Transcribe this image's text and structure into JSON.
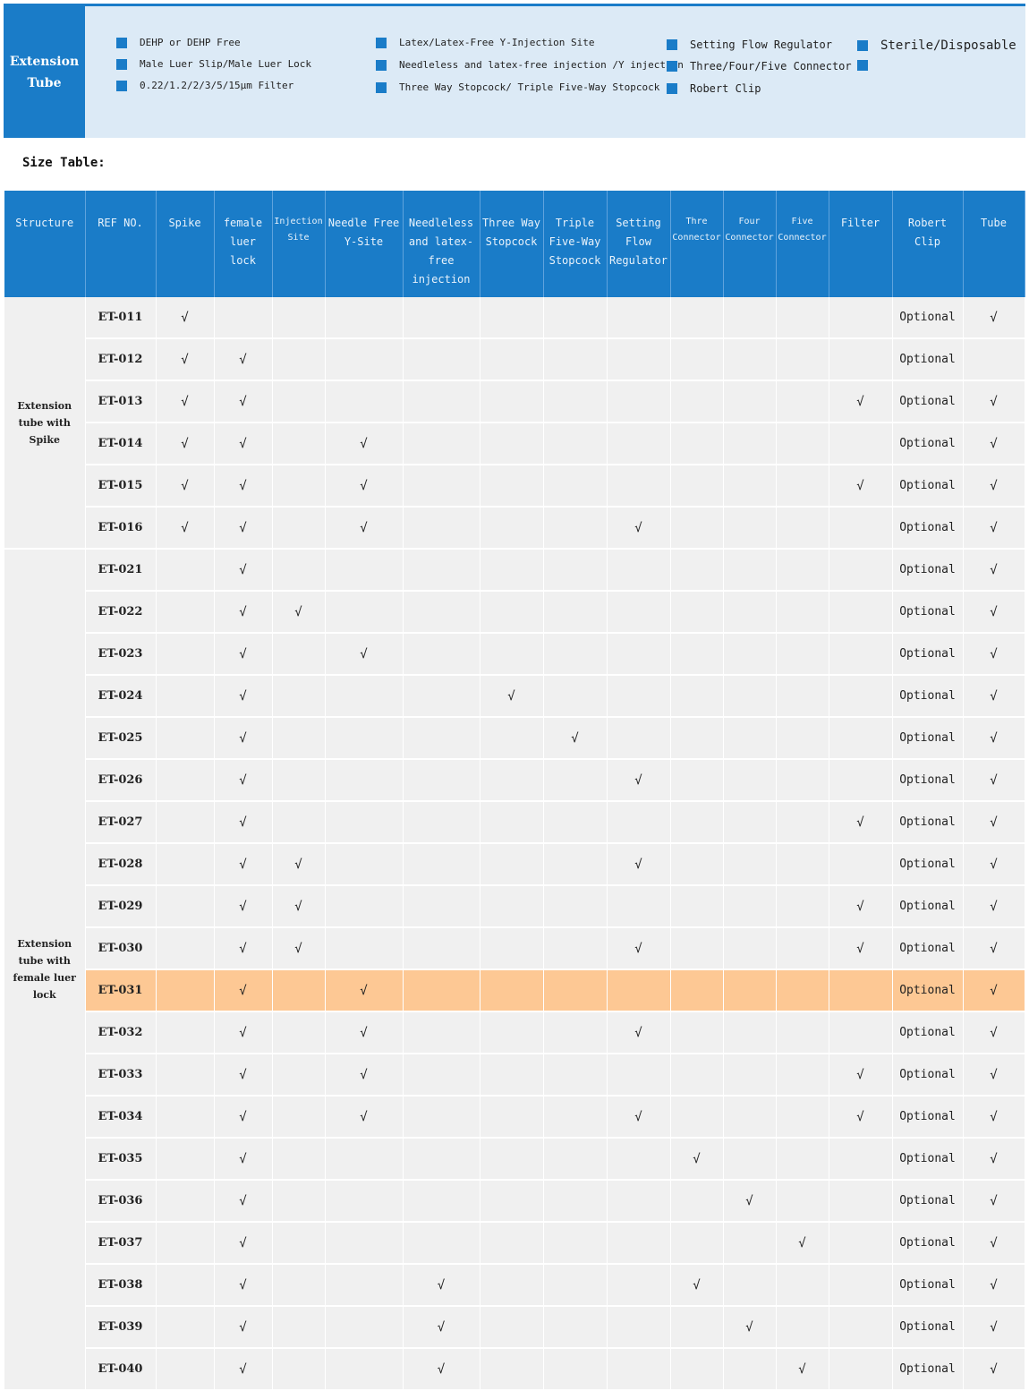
{
  "banner": {
    "title_line1": "Extension",
    "title_line2": "Tube",
    "features": [
      "DEHP or DEHP Free",
      "Male Luer Slip/Male Luer Lock",
      "0.22/1.2/2/3/5/15μm Filter",
      "Latex/Latex-Free Y-Injection Site",
      "Needleless and latex-free  injection /Y injection",
      "Three Way  Stopcock/ Triple Five-Way Stopcock",
      "Setting Flow Regulator",
      "Three/Four/Five Connector",
      "Robert Clip",
      "Sterile/Disposable",
      ""
    ],
    "accent": "#1a7cc8",
    "background": "#dceaf6"
  },
  "size_table_label": "Size Table:",
  "table": {
    "headers": [
      "Structure",
      "REF NO.",
      "Spike",
      "female luer lock",
      "Injection Site",
      "Needle Free Y-Site",
      "Needleless and latex-free injection",
      "Three Way Stopcock",
      "Triple Five-Way Stopcock",
      "Setting Flow Regulator",
      "Thre Connector",
      "Four Connector",
      "Five Connector",
      "Filter",
      "Robert Clip",
      "Tube"
    ],
    "groups": [
      {
        "label": "Extension tube with Spike",
        "rows": 6
      },
      {
        "label": "Extension tube with female luer lock",
        "rows": 20
      }
    ],
    "highlight_row": "ET-031",
    "highlight_color": "#fdc894",
    "rows": [
      [
        "ET-011",
        "√",
        "",
        "",
        "",
        "",
        "",
        "",
        "",
        "",
        "",
        "",
        "",
        "Optional",
        "√"
      ],
      [
        "ET-012",
        "√",
        "√",
        "",
        "",
        "",
        "",
        "",
        "",
        "",
        "",
        "",
        "",
        "Optional",
        ""
      ],
      [
        "ET-013",
        "√",
        "√",
        "",
        "",
        "",
        "",
        "",
        "",
        "",
        "",
        "",
        "√",
        "Optional",
        "√"
      ],
      [
        "ET-014",
        "√",
        "√",
        "",
        "√",
        "",
        "",
        "",
        "",
        "",
        "",
        "",
        "",
        "Optional",
        "√"
      ],
      [
        "ET-015",
        "√",
        "√",
        "",
        "√",
        "",
        "",
        "",
        "",
        "",
        "",
        "",
        "√",
        "Optional",
        "√"
      ],
      [
        "ET-016",
        "√",
        "√",
        "",
        "√",
        "",
        "",
        "",
        "√",
        "",
        "",
        "",
        "",
        "Optional",
        "√"
      ],
      [
        "ET-021",
        "",
        "√",
        "",
        "",
        "",
        "",
        "",
        "",
        "",
        "",
        "",
        "",
        "Optional",
        "√"
      ],
      [
        "ET-022",
        "",
        "√",
        "√",
        "",
        "",
        "",
        "",
        "",
        "",
        "",
        "",
        "",
        "Optional",
        "√"
      ],
      [
        "ET-023",
        "",
        "√",
        "",
        "√",
        "",
        "",
        "",
        "",
        "",
        "",
        "",
        "",
        "Optional",
        "√"
      ],
      [
        "ET-024",
        "",
        "√",
        "",
        "",
        "",
        "√",
        "",
        "",
        "",
        "",
        "",
        "",
        "Optional",
        "√"
      ],
      [
        "ET-025",
        "",
        "√",
        "",
        "",
        "",
        "",
        "√",
        "",
        "",
        "",
        "",
        "",
        "Optional",
        "√"
      ],
      [
        "ET-026",
        "",
        "√",
        "",
        "",
        "",
        "",
        "",
        "√",
        "",
        "",
        "",
        "",
        "Optional",
        "√"
      ],
      [
        "ET-027",
        "",
        "√",
        "",
        "",
        "",
        "",
        "",
        "",
        "",
        "",
        "",
        "√",
        "Optional",
        "√"
      ],
      [
        "ET-028",
        "",
        "√",
        "√",
        "",
        "",
        "",
        "",
        "√",
        "",
        "",
        "",
        "",
        "Optional",
        "√"
      ],
      [
        "ET-029",
        "",
        "√",
        "√",
        "",
        "",
        "",
        "",
        "",
        "",
        "",
        "",
        "√",
        "Optional",
        "√"
      ],
      [
        "ET-030",
        "",
        "√",
        "√",
        "",
        "",
        "",
        "",
        "√",
        "",
        "",
        "",
        "√",
        "Optional",
        "√"
      ],
      [
        "ET-031",
        "",
        "√",
        "",
        "√",
        "",
        "",
        "",
        "",
        "",
        "",
        "",
        "",
        "Optional",
        "√"
      ],
      [
        "ET-032",
        "",
        "√",
        "",
        "√",
        "",
        "",
        "",
        "√",
        "",
        "",
        "",
        "",
        "Optional",
        "√"
      ],
      [
        "ET-033",
        "",
        "√",
        "",
        "√",
        "",
        "",
        "",
        "",
        "",
        "",
        "",
        "√",
        "Optional",
        "√"
      ],
      [
        "ET-034",
        "",
        "√",
        "",
        "√",
        "",
        "",
        "",
        "√",
        "",
        "",
        "",
        "√",
        "Optional",
        "√"
      ],
      [
        "ET-035",
        "",
        "√",
        "",
        "",
        "",
        "",
        "",
        "",
        "√",
        "",
        "",
        "",
        "Optional",
        "√"
      ],
      [
        "ET-036",
        "",
        "√",
        "",
        "",
        "",
        "",
        "",
        "",
        "",
        "√",
        "",
        "",
        "Optional",
        "√"
      ],
      [
        "ET-037",
        "",
        "√",
        "",
        "",
        "",
        "",
        "",
        "",
        "",
        "",
        "√",
        "",
        "Optional",
        "√"
      ],
      [
        "ET-038",
        "",
        "√",
        "",
        "",
        "√",
        "",
        "",
        "",
        "√",
        "",
        "",
        "",
        "Optional",
        "√"
      ],
      [
        "ET-039",
        "",
        "√",
        "",
        "",
        "√",
        "",
        "",
        "",
        "",
        "√",
        "",
        "",
        "Optional",
        "√"
      ],
      [
        "ET-040",
        "",
        "√",
        "",
        "",
        "√",
        "",
        "",
        "",
        "",
        "",
        "√",
        "",
        "Optional",
        "√"
      ]
    ]
  }
}
